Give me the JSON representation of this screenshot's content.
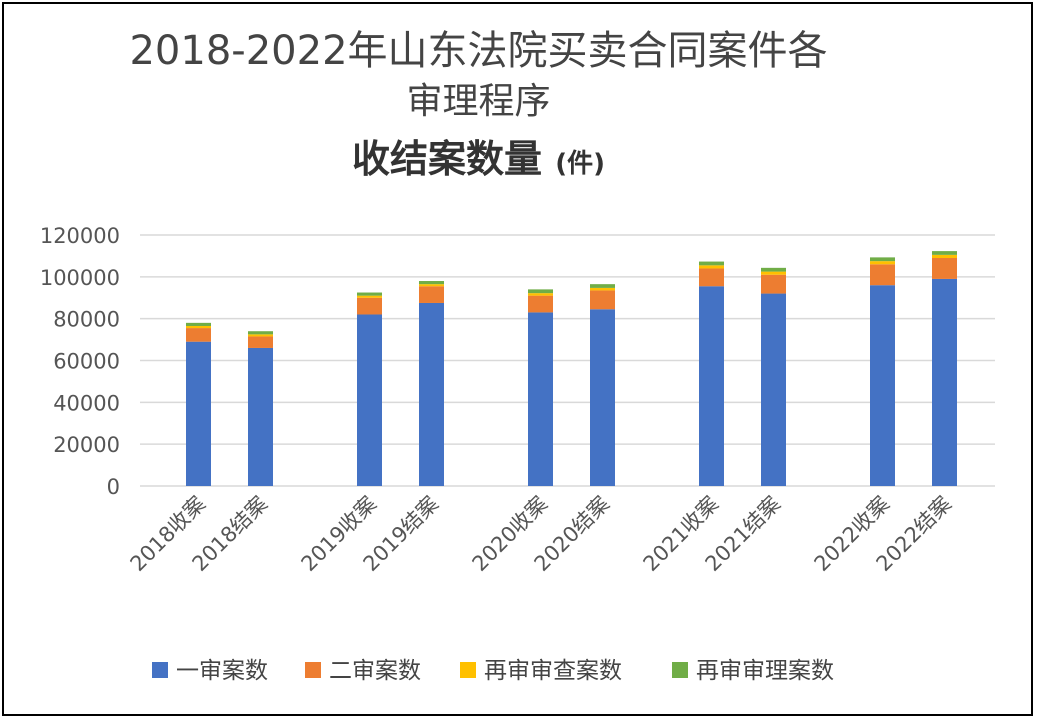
{
  "chart_data": {
    "type": "bar",
    "stacked": true,
    "title_line1": "2018-2022年山东法院买卖合同案件各",
    "title_line2": "审理程序",
    "title_line3": "收结案数量",
    "title_unit": "(件)",
    "categories": [
      "2018收案",
      "2018结案",
      "2019收案",
      "2019结案",
      "2020收案",
      "2020结案",
      "2021收案",
      "2021结案",
      "2022收案",
      "2022结案"
    ],
    "groups": [
      [
        0,
        1
      ],
      [
        2,
        3
      ],
      [
        4,
        5
      ],
      [
        6,
        7
      ],
      [
        8,
        9
      ]
    ],
    "series": [
      {
        "name": "一审案数",
        "color": "#4472C4",
        "values": [
          69000,
          66000,
          82000,
          87500,
          83000,
          84500,
          95500,
          92000,
          96000,
          99000
        ]
      },
      {
        "name": "二审案数",
        "color": "#ED7D31",
        "values": [
          6500,
          5500,
          8000,
          8000,
          8000,
          9000,
          8500,
          9000,
          10000,
          10000
        ]
      },
      {
        "name": "再审审查案数",
        "color": "#FFC000",
        "values": [
          1000,
          1000,
          1000,
          1000,
          1200,
          1200,
          1500,
          1500,
          1500,
          1500
        ]
      },
      {
        "name": "再审审理案数",
        "color": "#70AD47",
        "values": [
          1500,
          1500,
          1500,
          1500,
          1800,
          1800,
          1800,
          1800,
          1800,
          1800
        ]
      }
    ],
    "yticks": [
      0,
      20000,
      40000,
      60000,
      80000,
      100000,
      120000
    ],
    "ylim": [
      0,
      120000
    ],
    "grid": true,
    "legend_position": "bottom"
  }
}
